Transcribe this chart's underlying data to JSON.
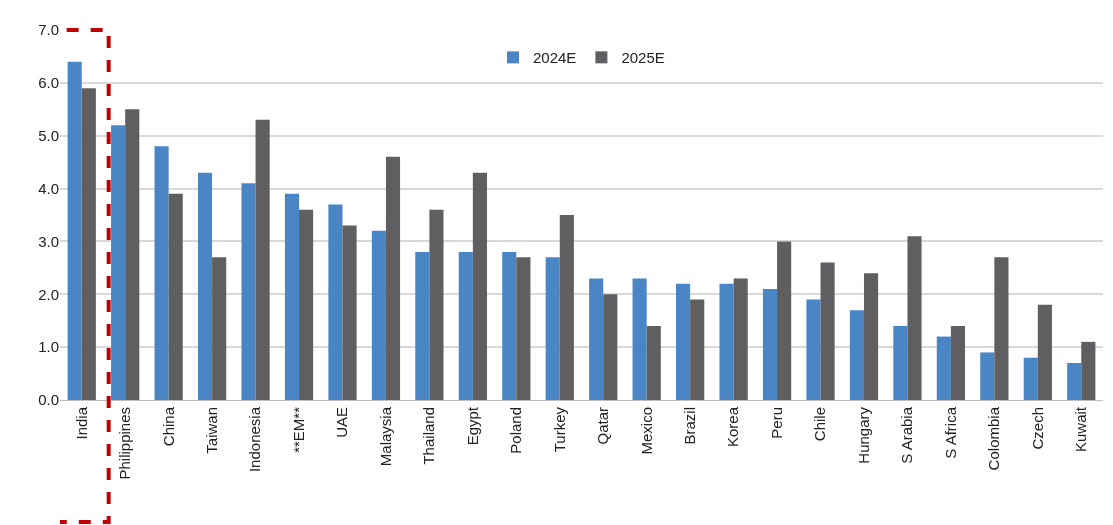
{
  "chart_data": {
    "type": "bar",
    "categories": [
      "India",
      "Philippines",
      "China",
      "Taiwan",
      "Indonesia",
      "**EM**",
      "UAE",
      "Malaysia",
      "Thailand",
      "Egypt",
      "Poland",
      "Turkey",
      "Qatar",
      "Mexico",
      "Brazil",
      "Korea",
      "Peru",
      "Chile",
      "Hungary",
      "S Arabia",
      "S Africa",
      "Colombia",
      "Czech",
      "Kuwait"
    ],
    "series": [
      {
        "name": "2024E",
        "color": "#4a86c5",
        "values": [
          6.4,
          5.2,
          4.8,
          4.3,
          4.1,
          3.9,
          3.7,
          3.2,
          2.8,
          2.8,
          2.8,
          2.7,
          2.3,
          2.3,
          2.2,
          2.2,
          2.1,
          1.9,
          1.7,
          1.4,
          1.2,
          0.9,
          0.8,
          0.7
        ]
      },
      {
        "name": "2025E",
        "color": "#5f5f61",
        "values": [
          5.9,
          5.5,
          3.9,
          2.7,
          5.3,
          3.6,
          3.3,
          4.6,
          3.6,
          4.3,
          2.7,
          3.5,
          2.0,
          1.4,
          1.9,
          2.3,
          3.0,
          2.6,
          2.4,
          3.1,
          1.4,
          2.7,
          1.8,
          1.1
        ]
      }
    ],
    "ylim": [
      0,
      7
    ],
    "yticks": [
      {
        "value": 0,
        "label": "0.0"
      },
      {
        "value": 1,
        "label": "1.0"
      },
      {
        "value": 2,
        "label": "2.0"
      },
      {
        "value": 3,
        "label": "3.0"
      },
      {
        "value": 4,
        "label": "4.0"
      },
      {
        "value": 5,
        "label": "5.0"
      },
      {
        "value": 6,
        "label": "6.0"
      },
      {
        "value": 7,
        "label": "7.0"
      }
    ],
    "grid": "y",
    "legend": "top"
  }
}
